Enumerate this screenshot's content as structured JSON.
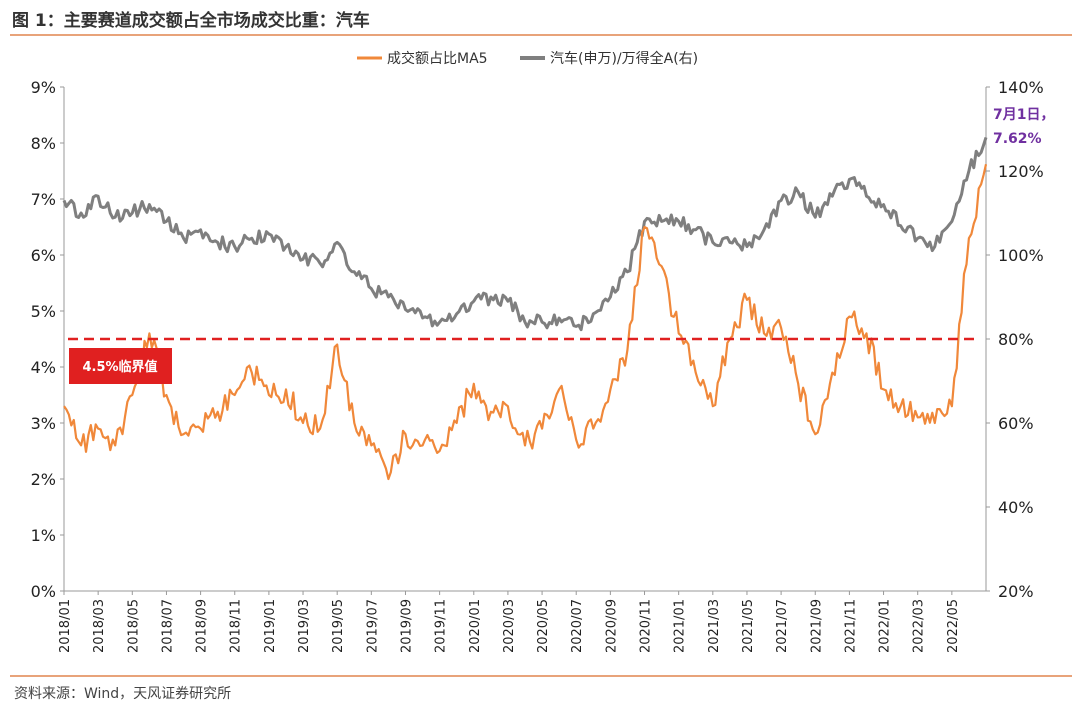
{
  "title": "图 1：主要赛道成交额占全市场成交比重：汽车",
  "source": "资料来源：Wind，天风证券研究所",
  "colors": {
    "ma5": "#f0883a",
    "index": "#7f7f7f",
    "threshold": "#e02020",
    "annotation": "#7030a0",
    "accent": "#e8a37a"
  },
  "annotation": {
    "line1": "7月1日，",
    "line2": "7.62%"
  },
  "threshold_label": "4.5%临界值",
  "chart_data": {
    "type": "line",
    "x_range": [
      "2018-01",
      "2022-07"
    ],
    "x_ticks": [
      "2018/01",
      "2018/03",
      "2018/05",
      "2018/07",
      "2018/09",
      "2018/11",
      "2019/01",
      "2019/03",
      "2019/05",
      "2019/07",
      "2019/09",
      "2019/11",
      "2020/01",
      "2020/03",
      "2020/05",
      "2020/07",
      "2020/09",
      "2020/11",
      "2021/01",
      "2021/03",
      "2021/05",
      "2021/07",
      "2021/09",
      "2021/11",
      "2022/01",
      "2022/03",
      "2022/05"
    ],
    "y_left": {
      "ticks": [
        "0%",
        "1%",
        "2%",
        "3%",
        "4%",
        "5%",
        "6%",
        "7%",
        "8%",
        "9%"
      ],
      "min": 0,
      "max": 9
    },
    "y_right": {
      "ticks": [
        "20%",
        "40%",
        "60%",
        "80%",
        "100%",
        "120%",
        "140%"
      ],
      "min": 20,
      "max": 140
    },
    "legend_position": "top-center",
    "threshold": {
      "value": 4.5,
      "axis": "left"
    },
    "series": [
      {
        "name": "成交额占比MA5",
        "axis": "left",
        "points": [
          [
            "2018-01",
            3.3
          ],
          [
            "2018-02",
            2.6
          ],
          [
            "2018-03",
            2.9
          ],
          [
            "2018-04",
            2.6
          ],
          [
            "2018-05",
            3.5
          ],
          [
            "2018-06",
            4.6
          ],
          [
            "2018-07",
            3.5
          ],
          [
            "2018-08",
            2.8
          ],
          [
            "2018-09",
            2.9
          ],
          [
            "2018-10",
            3.2
          ],
          [
            "2018-11",
            3.5
          ],
          [
            "2018-12",
            3.9
          ],
          [
            "2019-01",
            3.5
          ],
          [
            "2019-02",
            3.6
          ],
          [
            "2019-03",
            3.0
          ],
          [
            "2019-04",
            2.9
          ],
          [
            "2019-05",
            4.4
          ],
          [
            "2019-06",
            3.0
          ],
          [
            "2019-07",
            2.6
          ],
          [
            "2019-08",
            2.0
          ],
          [
            "2019-09",
            2.8
          ],
          [
            "2019-10",
            2.6
          ],
          [
            "2019-11",
            2.5
          ],
          [
            "2019-12",
            3.0
          ],
          [
            "2020-01",
            3.7
          ],
          [
            "2020-02",
            3.2
          ],
          [
            "2020-03",
            3.3
          ],
          [
            "2020-04",
            2.6
          ],
          [
            "2020-05",
            2.9
          ],
          [
            "2020-06",
            3.6
          ],
          [
            "2020-07",
            2.7
          ],
          [
            "2020-08",
            2.9
          ],
          [
            "2020-09",
            3.6
          ],
          [
            "2020-10",
            4.3
          ],
          [
            "2020-11",
            6.5
          ],
          [
            "2020-12",
            5.8
          ],
          [
            "2021-01",
            4.6
          ],
          [
            "2021-02",
            3.9
          ],
          [
            "2021-03",
            3.3
          ],
          [
            "2021-04",
            4.5
          ],
          [
            "2021-05",
            5.2
          ],
          [
            "2021-06",
            4.6
          ],
          [
            "2021-07",
            4.7
          ],
          [
            "2021-08",
            3.7
          ],
          [
            "2021-09",
            2.8
          ],
          [
            "2021-10",
            3.9
          ],
          [
            "2021-11",
            4.9
          ],
          [
            "2021-12",
            4.6
          ],
          [
            "2022-01",
            3.6
          ],
          [
            "2022-02",
            3.3
          ],
          [
            "2022-03",
            3.1
          ],
          [
            "2022-04",
            3.0
          ],
          [
            "2022-05",
            3.3
          ],
          [
            "2022-06",
            6.3
          ],
          [
            "2022-07",
            7.62
          ]
        ]
      },
      {
        "name": "汽车(申万)/万得全A(右)",
        "axis": "right",
        "points": [
          [
            "2018-01",
            113
          ],
          [
            "2018-02",
            110
          ],
          [
            "2018-03",
            114
          ],
          [
            "2018-04",
            109
          ],
          [
            "2018-05",
            110
          ],
          [
            "2018-06",
            112
          ],
          [
            "2018-07",
            108
          ],
          [
            "2018-08",
            104
          ],
          [
            "2018-09",
            106
          ],
          [
            "2018-10",
            103
          ],
          [
            "2018-11",
            102
          ],
          [
            "2018-12",
            104
          ],
          [
            "2019-01",
            105
          ],
          [
            "2019-02",
            102
          ],
          [
            "2019-03",
            99
          ],
          [
            "2019-04",
            98
          ],
          [
            "2019-05",
            103
          ],
          [
            "2019-06",
            96
          ],
          [
            "2019-07",
            92
          ],
          [
            "2019-08",
            90
          ],
          [
            "2019-09",
            87
          ],
          [
            "2019-10",
            85
          ],
          [
            "2019-11",
            84
          ],
          [
            "2019-12",
            86
          ],
          [
            "2020-01",
            89
          ],
          [
            "2020-02",
            90
          ],
          [
            "2020-03",
            89
          ],
          [
            "2020-04",
            84
          ],
          [
            "2020-05",
            84
          ],
          [
            "2020-06",
            85
          ],
          [
            "2020-07",
            83
          ],
          [
            "2020-08",
            86
          ],
          [
            "2020-09",
            90
          ],
          [
            "2020-10",
            96
          ],
          [
            "2020-11",
            108
          ],
          [
            "2020-12",
            108
          ],
          [
            "2021-01",
            108
          ],
          [
            "2021-02",
            106
          ],
          [
            "2021-03",
            103
          ],
          [
            "2021-04",
            103
          ],
          [
            "2021-05",
            102
          ],
          [
            "2021-06",
            106
          ],
          [
            "2021-07",
            113
          ],
          [
            "2021-08",
            115
          ],
          [
            "2021-09",
            109
          ],
          [
            "2021-10",
            114
          ],
          [
            "2021-11",
            118
          ],
          [
            "2021-12",
            114
          ],
          [
            "2022-01",
            112
          ],
          [
            "2022-02",
            107
          ],
          [
            "2022-03",
            104
          ],
          [
            "2022-04",
            102
          ],
          [
            "2022-05",
            108
          ],
          [
            "2022-06",
            120
          ],
          [
            "2022-07",
            128
          ]
        ]
      }
    ]
  }
}
